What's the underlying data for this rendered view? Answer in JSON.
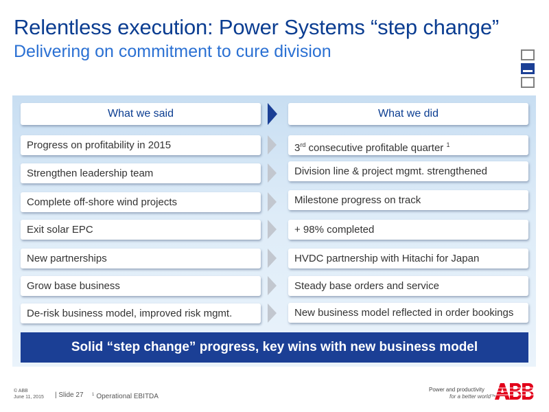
{
  "title": "Relentless execution: Power Systems “step change”",
  "subtitle": "Delivering on commitment to cure division",
  "headers": {
    "left": "What we said",
    "right": "What we did"
  },
  "rows": [
    {
      "said": "Progress on profitability in 2015",
      "did_pre": "3",
      "did_sup": "rd",
      "did_text": " consecutive profitable quarter ",
      "did_note": "1"
    },
    {
      "said": "Strengthen leadership team",
      "did": "Division line & project mgmt. strengthened"
    },
    {
      "said": "Complete off-shore wind projects",
      "did": "Milestone progress on track"
    },
    {
      "said": "Exit solar EPC",
      "did": "+ 98% completed"
    },
    {
      "said": "New partnerships",
      "did": "HVDC partnership with Hitachi for Japan"
    },
    {
      "said": "Grow base business",
      "did": "Steady base orders and service"
    },
    {
      "said": "De-risk business model, improved risk mgmt.",
      "did": "New business model reflected in order bookings"
    }
  ],
  "banner": "Solid “step change” progress, key wins with new business model",
  "footer": {
    "copyright": "© ABB",
    "date": "June 11, 2015",
    "slide": "| Slide 27",
    "footnote_mark": "1",
    "footnote": "Operational EBITDA",
    "tagline_line1": "Power and productivity",
    "tagline_line2": "for a better world™",
    "logo_text": "ABB"
  },
  "colors": {
    "title": "#0b3d91",
    "subtitle": "#2a70d3",
    "banner": "#1b3f95",
    "logo": "#e2001a"
  }
}
